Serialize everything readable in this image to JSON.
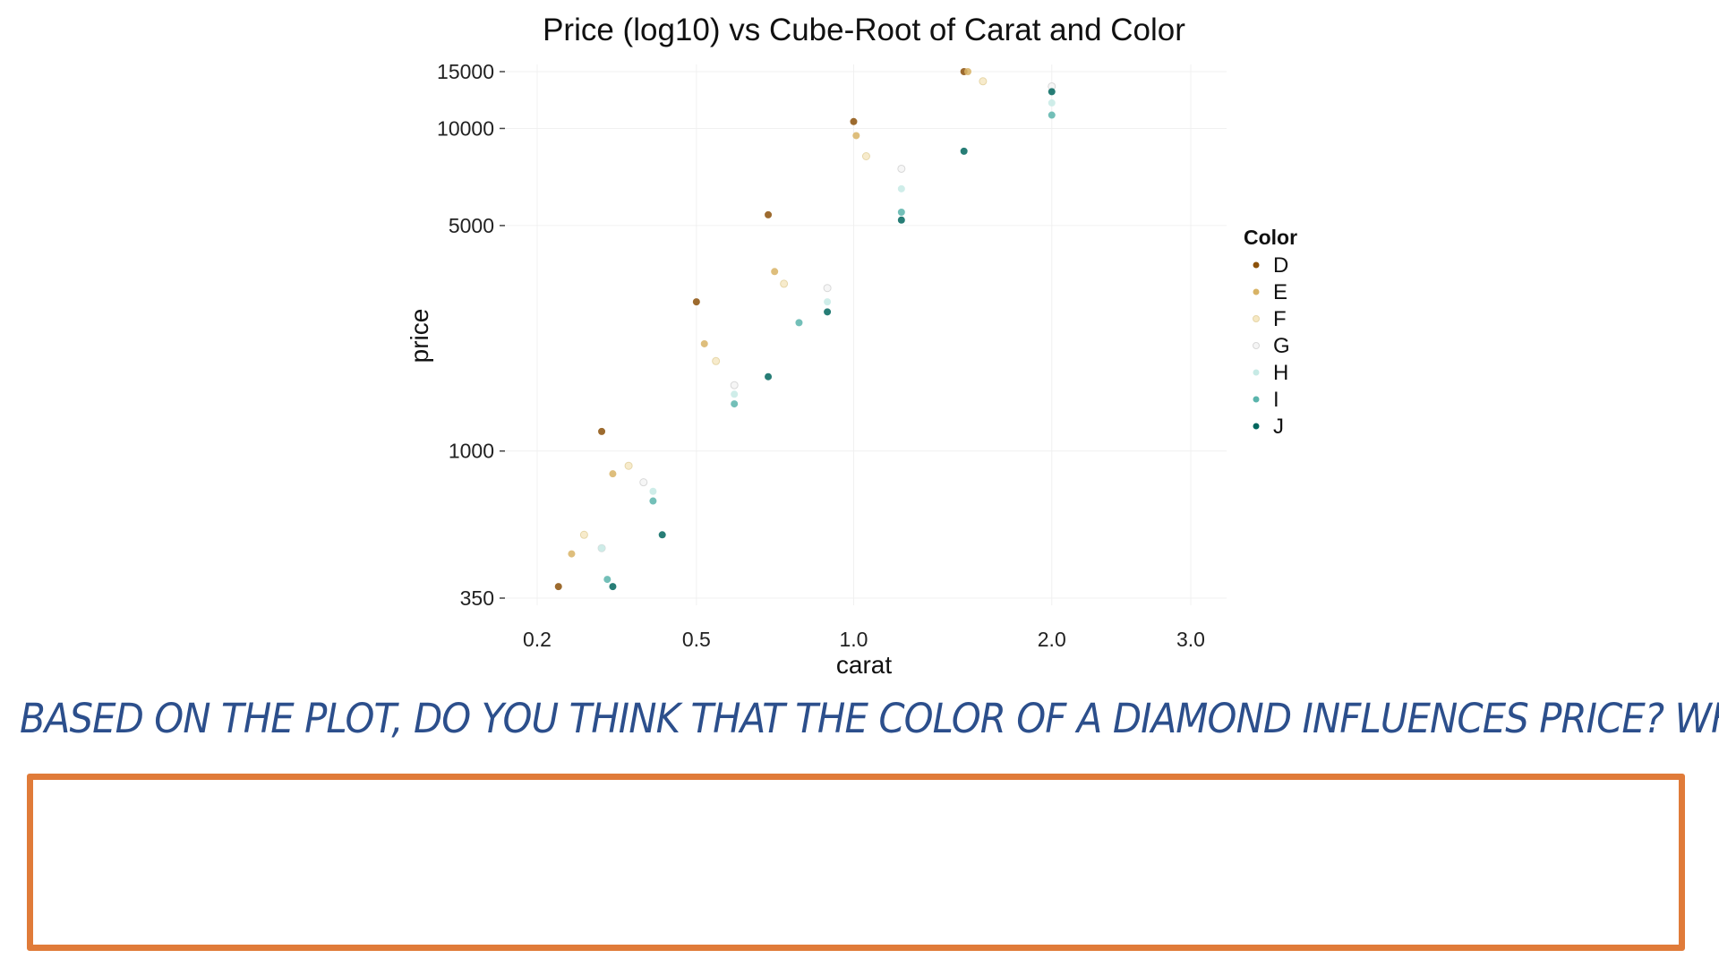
{
  "chart_data": {
    "type": "scatter",
    "title": "Price (log10) vs Cube-Root of Carat and Color",
    "xlabel": "carat",
    "ylabel": "price",
    "x_scale": "cube-root",
    "y_scale": "log10",
    "xlim": [
      0.2,
      3.0
    ],
    "ylim": [
      350,
      15000
    ],
    "x_ticks": [
      0.2,
      0.5,
      1.0,
      2.0,
      3.0
    ],
    "x_tick_labels": [
      "0.2",
      "0.5",
      "1.0",
      "2.0",
      "3.0"
    ],
    "y_ticks": [
      350,
      1000,
      5000,
      10000,
      15000
    ],
    "y_tick_labels": [
      "350",
      "1000",
      "5000",
      "10000",
      "15000"
    ],
    "grid": true,
    "legend": {
      "title": "Color",
      "position": "right",
      "entries": [
        "D",
        "E",
        "F",
        "G",
        "H",
        "I",
        "J"
      ]
    },
    "series": [
      {
        "name": "D",
        "color": "#8c510a",
        "x": [
          0.23,
          0.3,
          0.5,
          0.7,
          1.0,
          1.5
        ],
        "y": [
          380,
          1150,
          2900,
          5400,
          10500,
          15000
        ]
      },
      {
        "name": "E",
        "color": "#d8b365",
        "x": [
          0.25,
          0.32,
          0.52,
          0.72,
          1.01,
          1.52
        ],
        "y": [
          480,
          850,
          2150,
          3600,
          9500,
          15000
        ]
      },
      {
        "name": "F",
        "color": "#f6e8c3",
        "x": [
          0.27,
          0.35,
          0.55,
          0.75,
          1.05,
          1.6
        ],
        "y": [
          550,
          900,
          1900,
          3300,
          8200,
          14000
        ]
      },
      {
        "name": "G",
        "color": "#f5f5f5",
        "x": [
          0.3,
          0.38,
          0.6,
          0.9,
          1.2,
          2.0
        ],
        "y": [
          500,
          800,
          1600,
          3200,
          7500,
          13500
        ]
      },
      {
        "name": "H",
        "color": "#c7eae5",
        "x": [
          0.3,
          0.4,
          0.6,
          0.9,
          1.2,
          2.0
        ],
        "y": [
          500,
          750,
          1500,
          2900,
          6500,
          12000
        ]
      },
      {
        "name": "I",
        "color": "#5ab4ac",
        "x": [
          0.31,
          0.4,
          0.6,
          0.8,
          1.2,
          2.0
        ],
        "y": [
          400,
          700,
          1400,
          2500,
          5500,
          11000
        ]
      },
      {
        "name": "J",
        "color": "#01665e",
        "x": [
          0.32,
          0.42,
          0.7,
          0.9,
          1.2,
          1.5,
          2.0
        ],
        "y": [
          380,
          550,
          1700,
          2700,
          5200,
          8500,
          13000
        ]
      }
    ]
  },
  "question": {
    "text": "BASED ON THE PLOT, DO YOU THINK THAT THE COLOR OF A DIAMOND INFLUENCES PRICE? WHY?"
  },
  "answer_box": {
    "border_color": "#e07b39"
  }
}
